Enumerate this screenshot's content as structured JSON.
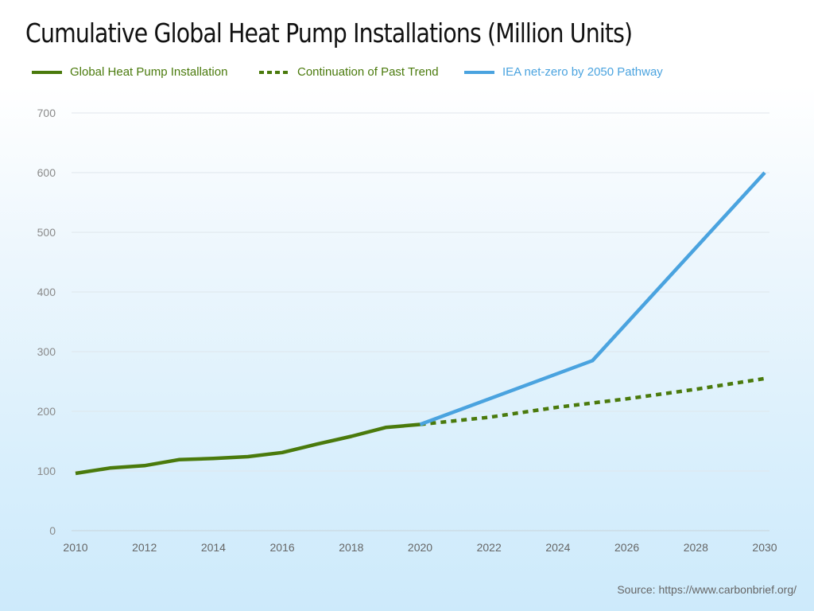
{
  "title": "Cumulative Global Heat Pump Installations (Million Units)",
  "legend": [
    {
      "label": "Global Heat Pump Installation",
      "color": "#4a7a0c",
      "style": "solid"
    },
    {
      "label": "Continuation of Past Trend",
      "color": "#4a7a0c",
      "style": "dashed"
    },
    {
      "label": "IEA net-zero by 2050 Pathway",
      "color": "#4aa3df",
      "style": "solid"
    }
  ],
  "source": "Source: https://www.carbonbrief.org/",
  "chart_data": {
    "type": "line",
    "title": "Cumulative Global Heat Pump Installations (Million Units)",
    "xlabel": "",
    "ylabel": "",
    "xlim": [
      2010,
      2030
    ],
    "ylim": [
      0,
      700
    ],
    "x_ticks": [
      2010,
      2012,
      2014,
      2016,
      2018,
      2020,
      2022,
      2024,
      2026,
      2028,
      2030
    ],
    "y_ticks": [
      0,
      100,
      200,
      300,
      400,
      500,
      600,
      700
    ],
    "grid": true,
    "legend_position": "top",
    "series": [
      {
        "name": "Global Heat Pump Installation",
        "color": "#4a7a0c",
        "style": "solid",
        "x": [
          2010,
          2011,
          2012,
          2013,
          2014,
          2015,
          2016,
          2017,
          2018,
          2019,
          2020
        ],
        "y": [
          96,
          105,
          109,
          119,
          121,
          124,
          131,
          145,
          158,
          173,
          178
        ]
      },
      {
        "name": "Continuation of Past Trend",
        "color": "#4a7a0c",
        "style": "dashed",
        "x": [
          2020,
          2022,
          2024,
          2026,
          2028,
          2030
        ],
        "y": [
          178,
          190,
          207,
          221,
          237,
          255
        ]
      },
      {
        "name": "IEA net-zero by 2050 Pathway",
        "color": "#4aa3df",
        "style": "solid",
        "x": [
          2020,
          2025,
          2030
        ],
        "y": [
          178,
          285,
          600
        ]
      }
    ]
  }
}
